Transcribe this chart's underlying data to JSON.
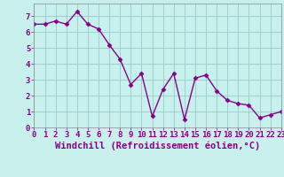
{
  "x": [
    0,
    1,
    2,
    3,
    4,
    5,
    6,
    7,
    8,
    9,
    10,
    11,
    12,
    13,
    14,
    15,
    16,
    17,
    18,
    19,
    20,
    21,
    22,
    23
  ],
  "y": [
    6.5,
    6.5,
    6.7,
    6.5,
    7.3,
    6.5,
    6.2,
    5.2,
    4.3,
    2.7,
    3.4,
    0.7,
    2.4,
    3.4,
    0.5,
    3.1,
    3.3,
    2.3,
    1.7,
    1.5,
    1.4,
    0.6,
    0.8,
    1.0
  ],
  "line_color": "#880088",
  "marker": "D",
  "marker_size": 2.5,
  "bg_color": "#c8f0ec",
  "grid_color": "#99cccc",
  "xlabel": "Windchill (Refroidissement éolien,°C)",
  "xlim": [
    0,
    23
  ],
  "ylim": [
    0,
    7.8
  ],
  "yticks": [
    0,
    1,
    2,
    3,
    4,
    5,
    6,
    7
  ],
  "xticks": [
    0,
    1,
    2,
    3,
    4,
    5,
    6,
    7,
    8,
    9,
    10,
    11,
    12,
    13,
    14,
    15,
    16,
    17,
    18,
    19,
    20,
    21,
    22,
    23
  ],
  "tick_fontsize": 6.5,
  "xlabel_fontsize": 7.5,
  "line_width": 1.0
}
